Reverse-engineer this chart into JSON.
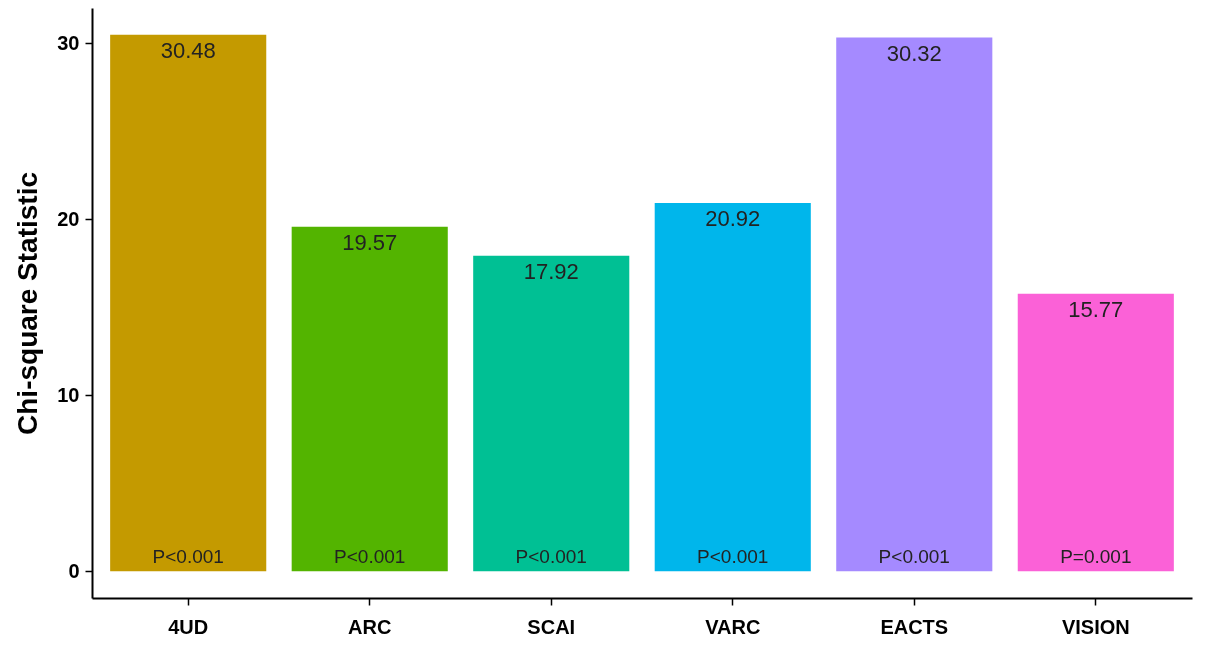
{
  "chart_data": {
    "type": "bar",
    "ylabel": "Chi-square Statistic",
    "categories": [
      "4UD",
      "ARC",
      "SCAI",
      "VARC",
      "EACTS",
      "VISION"
    ],
    "values": [
      30.48,
      19.57,
      17.92,
      20.92,
      30.32,
      15.77
    ],
    "colors": [
      "#c49a00",
      "#53b400",
      "#00c094",
      "#00b6eb",
      "#a58aff",
      "#fb61d7"
    ],
    "ylim": [
      -1.52,
      32.0
    ],
    "yticks": [
      0,
      10,
      20,
      30
    ],
    "grid": false,
    "data_labels": true,
    "annotations": [
      {
        "text": "P<0.001",
        "x": "4UD",
        "y": 0
      },
      {
        "text": "P<0.001",
        "x": "ARC",
        "y": 0
      },
      {
        "text": "P<0.001",
        "x": "SCAI",
        "y": 0
      },
      {
        "text": "P<0.001",
        "x": "VARC",
        "y": 0
      },
      {
        "text": "P<0.001",
        "x": "EACTS",
        "y": 0
      },
      {
        "text": "P=0.001",
        "x": "VISION",
        "y": 0
      }
    ]
  }
}
